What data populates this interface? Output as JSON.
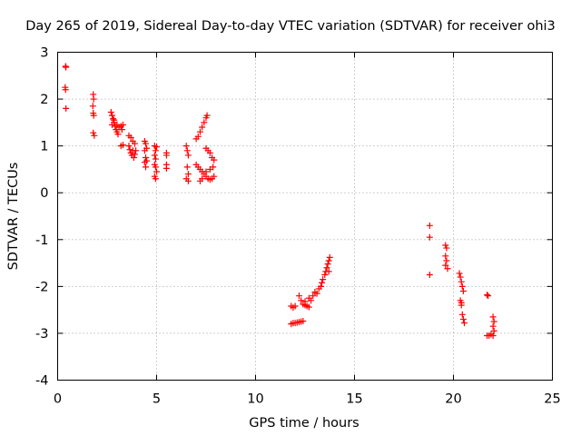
{
  "chart_data": {
    "type": "scatter",
    "title": "Day 265 of 2019, Sidereal Day-to-day VTEC variation (SDTVAR) for receiver ohi3",
    "xlabel": "GPS time / hours",
    "ylabel": "SDTVAR / TECUs",
    "xlim": [
      0,
      25
    ],
    "ylim": [
      -4,
      3
    ],
    "xticks": [
      "0",
      "5",
      "10",
      "15",
      "20",
      "25"
    ],
    "yticks": [
      "-4",
      "-3",
      "-2",
      "-1",
      "0",
      "1",
      "2",
      "3"
    ],
    "grid": true,
    "marker": "plus",
    "color": "#ff0000",
    "series": [
      {
        "name": "SDTVAR",
        "points": [
          [
            0.4,
            2.7
          ],
          [
            0.42,
            2.68
          ],
          [
            0.38,
            2.25
          ],
          [
            0.4,
            2.2
          ],
          [
            0.42,
            1.8
          ],
          [
            1.8,
            2.1
          ],
          [
            1.82,
            2.0
          ],
          [
            1.78,
            1.85
          ],
          [
            1.8,
            1.7
          ],
          [
            1.82,
            1.65
          ],
          [
            1.8,
            1.28
          ],
          [
            1.85,
            1.22
          ],
          [
            2.7,
            1.72
          ],
          [
            2.75,
            1.65
          ],
          [
            2.8,
            1.58
          ],
          [
            2.85,
            1.5
          ],
          [
            2.9,
            1.42
          ],
          [
            2.95,
            1.35
          ],
          [
            3.0,
            1.3
          ],
          [
            3.05,
            1.25
          ],
          [
            2.75,
            1.45
          ],
          [
            2.85,
            1.55
          ],
          [
            3.0,
            1.45
          ],
          [
            3.1,
            1.4
          ],
          [
            3.2,
            1.42
          ],
          [
            3.3,
            1.45
          ],
          [
            3.25,
            1.35
          ],
          [
            3.2,
            1.0
          ],
          [
            3.3,
            1.02
          ],
          [
            3.6,
            1.22
          ],
          [
            3.7,
            1.18
          ],
          [
            3.6,
            1.0
          ],
          [
            3.65,
            0.92
          ],
          [
            3.7,
            0.85
          ],
          [
            3.75,
            0.8
          ],
          [
            3.8,
            0.9
          ],
          [
            3.85,
            0.75
          ],
          [
            3.9,
            0.82
          ],
          [
            3.95,
            0.9
          ],
          [
            3.8,
            1.1
          ],
          [
            3.9,
            1.05
          ],
          [
            4.4,
            1.1
          ],
          [
            4.45,
            1.05
          ],
          [
            4.4,
            0.9
          ],
          [
            4.45,
            0.75
          ],
          [
            4.4,
            0.65
          ],
          [
            4.45,
            0.55
          ],
          [
            4.5,
            0.68
          ],
          [
            4.5,
            0.95
          ],
          [
            4.9,
            1.0
          ],
          [
            4.95,
            0.9
          ],
          [
            4.9,
            0.8
          ],
          [
            4.95,
            0.72
          ],
          [
            4.9,
            0.6
          ],
          [
            4.95,
            0.55
          ],
          [
            4.9,
            0.35
          ],
          [
            4.95,
            0.3
          ],
          [
            5.0,
            0.45
          ],
          [
            5.0,
            0.98
          ],
          [
            5.5,
            0.85
          ],
          [
            5.5,
            0.8
          ],
          [
            5.5,
            0.6
          ],
          [
            5.5,
            0.52
          ],
          [
            6.5,
            1.0
          ],
          [
            6.55,
            0.9
          ],
          [
            6.6,
            0.8
          ],
          [
            6.55,
            0.55
          ],
          [
            6.6,
            0.4
          ],
          [
            6.5,
            0.3
          ],
          [
            6.6,
            0.25
          ],
          [
            7.0,
            1.15
          ],
          [
            7.1,
            1.2
          ],
          [
            7.2,
            1.3
          ],
          [
            7.3,
            1.4
          ],
          [
            7.4,
            1.5
          ],
          [
            7.5,
            1.6
          ],
          [
            7.55,
            1.65
          ],
          [
            7.0,
            0.6
          ],
          [
            7.1,
            0.55
          ],
          [
            7.2,
            0.5
          ],
          [
            7.3,
            0.45
          ],
          [
            7.4,
            0.4
          ],
          [
            7.5,
            0.35
          ],
          [
            7.6,
            0.3
          ],
          [
            7.7,
            0.28
          ],
          [
            7.8,
            0.3
          ],
          [
            7.9,
            0.35
          ],
          [
            7.2,
            0.25
          ],
          [
            7.3,
            0.3
          ],
          [
            7.5,
            0.45
          ],
          [
            7.7,
            0.5
          ],
          [
            7.85,
            0.55
          ],
          [
            7.5,
            0.95
          ],
          [
            7.6,
            0.9
          ],
          [
            7.7,
            0.85
          ],
          [
            7.8,
            0.75
          ],
          [
            7.9,
            0.7
          ],
          [
            11.8,
            -2.42
          ],
          [
            11.9,
            -2.45
          ],
          [
            12.0,
            -2.42
          ],
          [
            11.8,
            -2.8
          ],
          [
            11.9,
            -2.78
          ],
          [
            12.0,
            -2.78
          ],
          [
            12.1,
            -2.77
          ],
          [
            12.2,
            -2.76
          ],
          [
            12.3,
            -2.75
          ],
          [
            12.4,
            -2.74
          ],
          [
            12.2,
            -2.2
          ],
          [
            12.3,
            -2.3
          ],
          [
            12.4,
            -2.38
          ],
          [
            12.5,
            -2.4
          ],
          [
            12.6,
            -2.42
          ],
          [
            12.7,
            -2.44
          ],
          [
            12.5,
            -2.32
          ],
          [
            12.7,
            -2.25
          ],
          [
            12.8,
            -2.3
          ],
          [
            12.9,
            -2.2
          ],
          [
            13.0,
            -2.12
          ],
          [
            13.1,
            -2.15
          ],
          [
            13.2,
            -2.05
          ],
          [
            13.3,
            -2.0
          ],
          [
            13.35,
            -1.92
          ],
          [
            13.4,
            -1.85
          ],
          [
            13.5,
            -1.75
          ],
          [
            13.55,
            -1.68
          ],
          [
            13.6,
            -1.6
          ],
          [
            13.65,
            -1.52
          ],
          [
            13.7,
            -1.45
          ],
          [
            13.75,
            -1.38
          ],
          [
            13.7,
            -1.68
          ],
          [
            18.8,
            -0.7
          ],
          [
            18.8,
            -0.95
          ],
          [
            18.8,
            -1.75
          ],
          [
            19.6,
            -1.12
          ],
          [
            19.65,
            -1.18
          ],
          [
            19.6,
            -1.35
          ],
          [
            19.65,
            -1.45
          ],
          [
            19.6,
            -1.55
          ],
          [
            19.7,
            -1.62
          ],
          [
            20.3,
            -1.72
          ],
          [
            20.35,
            -1.8
          ],
          [
            20.4,
            -1.9
          ],
          [
            20.45,
            -2.0
          ],
          [
            20.5,
            -2.1
          ],
          [
            20.35,
            -2.3
          ],
          [
            20.4,
            -2.4
          ],
          [
            20.45,
            -2.6
          ],
          [
            20.5,
            -2.7
          ],
          [
            20.55,
            -2.78
          ],
          [
            20.4,
            -2.35
          ],
          [
            21.7,
            -2.18
          ],
          [
            21.75,
            -2.2
          ],
          [
            21.7,
            -3.05
          ],
          [
            21.8,
            -3.05
          ],
          [
            21.9,
            -3.02
          ],
          [
            22.0,
            -3.05
          ],
          [
            22.0,
            -2.65
          ],
          [
            22.05,
            -2.75
          ],
          [
            22.0,
            -2.85
          ],
          [
            22.05,
            -2.95
          ]
        ]
      }
    ]
  }
}
